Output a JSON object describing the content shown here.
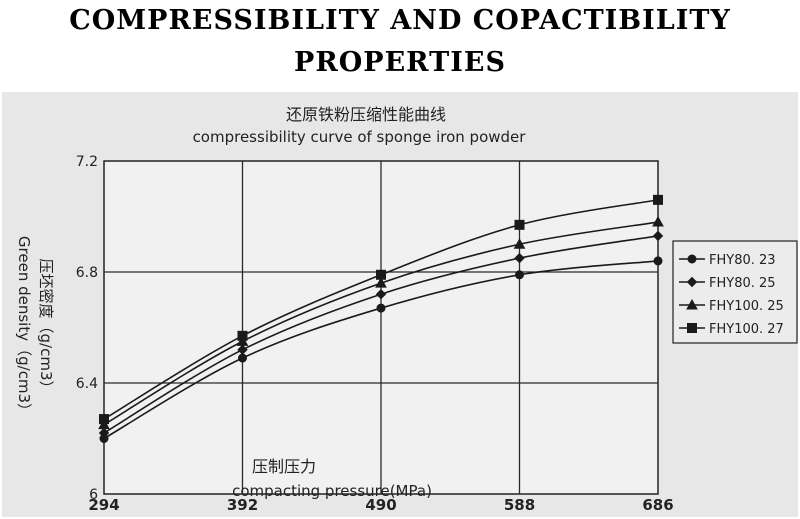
{
  "page": {
    "title_line1": "COMPRESSIBILITY AND COPACTIBILITY",
    "title_line2": "PROPERTIES"
  },
  "chart_data": {
    "type": "line",
    "title_cn": "还原铁粉压缩性能曲线",
    "title_en": "compressibility curve of sponge iron powder",
    "xlabel_cn": "压制压力",
    "xlabel_en": "compacting pressure(MPa)",
    "ylabel_cn": "压坯密度（g/cm3）",
    "ylabel_en": "Green density（g/cm3）",
    "x": [
      294,
      392,
      490,
      588,
      686
    ],
    "x_tick_labels": [
      "294",
      "392",
      "490",
      "588",
      "686"
    ],
    "y_ticks": [
      6,
      6.4,
      6.8,
      7.2
    ],
    "y_tick_labels": [
      "6",
      "6.4",
      "6.8",
      "7.2"
    ],
    "ylim": [
      6,
      7.2
    ],
    "xlim": [
      294,
      686
    ],
    "grid": true,
    "legend_position": "right",
    "series": [
      {
        "name": "FHY80. 23",
        "marker": "circle",
        "values": [
          6.2,
          6.49,
          6.67,
          6.79,
          6.84
        ]
      },
      {
        "name": "FHY80. 25",
        "marker": "diamond",
        "values": [
          6.22,
          6.52,
          6.72,
          6.85,
          6.93
        ]
      },
      {
        "name": "FHY100. 25",
        "marker": "triangle",
        "values": [
          6.25,
          6.55,
          6.76,
          6.9,
          6.98
        ]
      },
      {
        "name": "FHY100. 27",
        "marker": "square",
        "values": [
          6.27,
          6.57,
          6.79,
          6.97,
          7.06
        ]
      }
    ],
    "colors": {
      "line": "#1a1a1a",
      "grid": "#2a2a2a",
      "panel": "#e7e7e7",
      "plot": "#f2f2f2"
    }
  }
}
